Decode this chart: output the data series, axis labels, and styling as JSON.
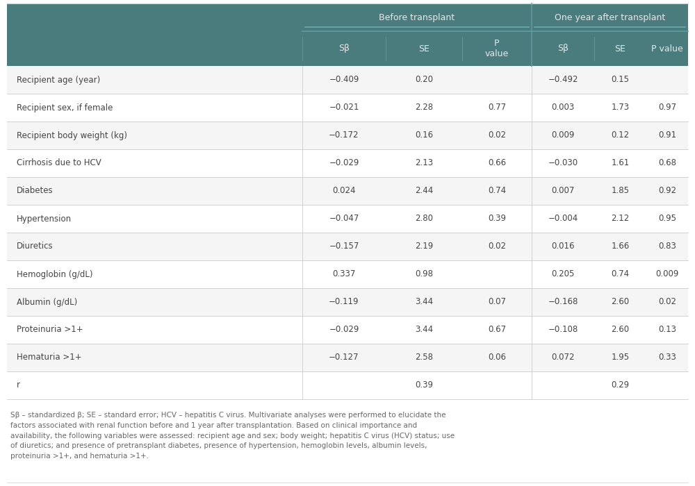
{
  "header_bg_color": "#4a7c7e",
  "header_text_color": "#e8e8e8",
  "border_color": "#cccccc",
  "header_border_color": "#5d9ea0",
  "text_color": "#444444",
  "footer_text_color": "#666666",
  "group_headers": [
    "Before transplant",
    "One year after transplant"
  ],
  "col_headers": [
    "Sβ",
    "SE",
    "P\nvalue",
    "Sβ",
    "SE",
    "P value"
  ],
  "row_labels": [
    "Recipient age (year)",
    "Recipient sex, if female",
    "Recipient body weight (kg)",
    "Cirrhosis due to HCV",
    "Diabetes",
    "Hypertension",
    "Diuretics",
    "Hemoglobin (g/dL)",
    "Albumin (g/dL)",
    "Proteinuria >1+",
    "Hematuria >1+",
    "r"
  ],
  "data": [
    [
      "−0.409",
      "0.20",
      "",
      "−0.492",
      "0.15",
      ""
    ],
    [
      "−0.021",
      "2.28",
      "0.77",
      "0.003",
      "1.73",
      "0.97"
    ],
    [
      "−0.172",
      "0.16",
      "0.02",
      "0.009",
      "0.12",
      "0.91"
    ],
    [
      "−0.029",
      "2.13",
      "0.66",
      "−0.030",
      "1.61",
      "0.68"
    ],
    [
      "0.024",
      "2.44",
      "0.74",
      "0.007",
      "1.85",
      "0.92"
    ],
    [
      "−0.047",
      "2.80",
      "0.39",
      "−0.004",
      "2.12",
      "0.95"
    ],
    [
      "−0.157",
      "2.19",
      "0.02",
      "0.016",
      "1.66",
      "0.83"
    ],
    [
      "0.337",
      "0.98",
      "",
      "0.205",
      "0.74",
      "0.009"
    ],
    [
      "−0.119",
      "3.44",
      "0.07",
      "−0.168",
      "2.60",
      "0.02"
    ],
    [
      "−0.029",
      "3.44",
      "0.67",
      "−0.108",
      "2.60",
      "0.13"
    ],
    [
      "−0.127",
      "2.58",
      "0.06",
      "0.072",
      "1.95",
      "0.33"
    ],
    [
      "",
      "0.39",
      "",
      "",
      "0.29",
      ""
    ]
  ],
  "footnote": "Sβ – standardized β; SE – standard error; HCV – hepatitis C virus. Multivariate analyses were performed to elucidate the\nfactors associated with renal function before and 1 year after transplantation. Based on clinical importance and\navailability, the following variables were assessed: recipient age and sex; body weight; hepatitis C virus (HCV) status; use\nof diuretics; and presence of pretransplant diabetes, presence of hypertension, hemoglobin levels, albumin levels,\nproteinuria >1+, and hematuria >1+.",
  "row_bg_even": "#f5f5f5",
  "row_bg_odd": "#ffffff",
  "fig_width": 10.0,
  "fig_height": 7.0,
  "dpi": 100
}
